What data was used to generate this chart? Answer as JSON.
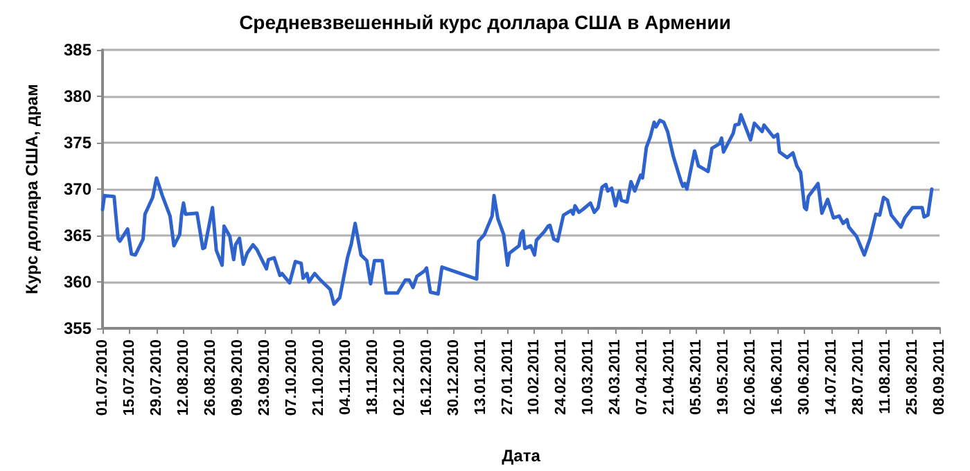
{
  "chart_data": {
    "type": "line",
    "title": "Средневзвешенный курс доллара США в Армении",
    "xlabel": "Дата",
    "ylabel": "Курс доллара США, драм",
    "series": [
      {
        "color": "#2e62cc",
        "x": [
          "2010-07-01",
          "2010-07-02",
          "2010-07-07",
          "2010-07-09",
          "2010-07-10",
          "2010-07-14",
          "2010-07-16",
          "2010-07-18",
          "2010-07-22",
          "2010-07-23",
          "2010-07-27",
          "2010-07-29",
          "2010-08-01",
          "2010-08-05",
          "2010-08-07",
          "2010-08-10",
          "2010-08-11",
          "2010-08-12",
          "2010-08-13",
          "2010-08-19",
          "2010-08-22",
          "2010-08-23",
          "2010-08-27",
          "2010-08-29",
          "2010-09-01",
          "2010-09-02",
          "2010-09-05",
          "2010-09-07",
          "2010-09-08",
          "2010-09-10",
          "2010-09-12",
          "2010-09-14",
          "2010-09-17",
          "2010-09-19",
          "2010-09-24",
          "2010-09-25",
          "2010-09-28",
          "2010-10-01",
          "2010-10-02",
          "2010-10-06",
          "2010-10-09",
          "2010-10-12",
          "2010-10-13",
          "2010-10-15",
          "2010-10-16",
          "2010-10-19",
          "2010-10-22",
          "2010-10-27",
          "2010-10-29",
          "2010-11-01",
          "2010-11-05",
          "2010-11-07",
          "2010-11-09",
          "2010-11-12",
          "2010-11-15",
          "2010-11-17",
          "2010-11-19",
          "2010-11-23",
          "2010-11-25",
          "2010-12-01",
          "2010-12-05",
          "2010-12-07",
          "2010-12-09",
          "2010-12-11",
          "2010-12-15",
          "2010-12-16",
          "2010-12-18",
          "2010-12-22",
          "2010-12-24",
          "2011-01-11",
          "2011-01-12",
          "2011-01-15",
          "2011-01-19",
          "2011-01-20",
          "2011-01-22",
          "2011-01-25",
          "2011-01-27",
          "2011-01-28",
          "2011-02-02",
          "2011-02-03",
          "2011-02-04",
          "2011-02-05",
          "2011-02-08",
          "2011-02-10",
          "2011-02-11",
          "2011-02-15",
          "2011-02-17",
          "2011-02-18",
          "2011-02-20",
          "2011-02-22",
          "2011-02-25",
          "2011-03-01",
          "2011-03-02",
          "2011-03-03",
          "2011-03-05",
          "2011-03-07",
          "2011-03-11",
          "2011-03-13",
          "2011-03-15",
          "2011-03-17",
          "2011-03-19",
          "2011-03-20",
          "2011-03-22",
          "2011-03-24",
          "2011-03-26",
          "2011-03-27",
          "2011-03-30",
          "2011-04-01",
          "2011-04-03",
          "2011-04-06",
          "2011-04-07",
          "2011-04-09",
          "2011-04-11",
          "2011-04-13",
          "2011-04-14",
          "2011-04-16",
          "2011-04-18",
          "2011-04-20",
          "2011-04-23",
          "2011-04-27",
          "2011-04-28",
          "2011-04-29",
          "2011-04-30",
          "2011-05-04",
          "2011-05-06",
          "2011-05-11",
          "2011-05-13",
          "2011-05-17",
          "2011-05-18",
          "2011-05-19",
          "2011-05-24",
          "2011-05-25",
          "2011-05-27",
          "2011-05-28",
          "2011-06-02",
          "2011-06-04",
          "2011-06-08",
          "2011-06-09",
          "2011-06-14",
          "2011-06-16",
          "2011-06-17",
          "2011-06-21",
          "2011-06-24",
          "2011-06-26",
          "2011-06-28",
          "2011-06-30",
          "2011-07-01",
          "2011-07-02",
          "2011-07-07",
          "2011-07-09",
          "2011-07-12",
          "2011-07-15",
          "2011-07-18",
          "2011-07-20",
          "2011-07-22",
          "2011-07-23",
          "2011-07-27",
          "2011-07-31",
          "2011-08-03",
          "2011-08-06",
          "2011-08-08",
          "2011-08-10",
          "2011-08-12",
          "2011-08-14",
          "2011-08-19",
          "2011-08-21",
          "2011-08-25",
          "2011-08-30",
          "2011-08-31",
          "2011-09-02",
          "2011-09-04"
        ],
        "values": [
          367.8,
          369.3,
          369.2,
          364.7,
          364.4,
          365.7,
          363.0,
          362.9,
          364.6,
          367.3,
          369.1,
          371.2,
          369.3,
          367.1,
          363.9,
          365.1,
          367.3,
          368.5,
          367.3,
          367.4,
          363.6,
          363.7,
          368.0,
          363.4,
          361.8,
          366.0,
          364.9,
          362.4,
          364.0,
          364.7,
          361.9,
          363.1,
          364.0,
          363.5,
          361.4,
          362.4,
          362.6,
          360.7,
          360.9,
          359.9,
          362.2,
          362.0,
          360.4,
          360.9,
          360.0,
          360.9,
          360.2,
          359.2,
          357.6,
          358.3,
          362.6,
          364.1,
          366.3,
          362.9,
          362.3,
          359.8,
          362.3,
          362.3,
          358.8,
          358.8,
          360.2,
          360.2,
          359.4,
          360.6,
          361.2,
          361.5,
          358.9,
          358.7,
          361.6,
          360.3,
          364.4,
          365.1,
          367.1,
          369.3,
          366.8,
          365.1,
          361.8,
          363.1,
          363.9,
          365.2,
          365.5,
          363.6,
          363.9,
          362.9,
          364.5,
          365.4,
          366.0,
          366.1,
          364.6,
          364.4,
          367.2,
          367.7,
          367.3,
          368.2,
          367.5,
          367.8,
          368.5,
          367.5,
          368.0,
          370.2,
          370.5,
          369.8,
          370.1,
          368.2,
          369.8,
          368.8,
          368.6,
          370.8,
          369.8,
          371.5,
          371.2,
          374.5,
          375.6,
          377.2,
          376.7,
          377.4,
          377.2,
          376.2,
          373.5,
          370.8,
          370.3,
          370.6,
          370.0,
          374.1,
          372.5,
          371.9,
          374.4,
          374.9,
          375.5,
          374.0,
          376.0,
          376.9,
          377.0,
          378.0,
          375.3,
          377.1,
          376.2,
          376.9,
          375.6,
          375.9,
          374.0,
          373.4,
          373.9,
          372.5,
          371.8,
          368.0,
          367.8,
          369.2,
          370.6,
          367.4,
          368.9,
          366.9,
          367.1,
          366.3,
          366.7,
          365.9,
          364.9,
          362.9,
          364.7,
          367.3,
          367.2,
          369.1,
          368.8,
          367.2,
          365.9,
          366.9,
          368.0,
          368.0,
          367.0,
          367.2,
          370.0
        ]
      }
    ],
    "xlim": [
      "2010-07-01",
      "2011-09-08"
    ],
    "xticks": [
      {
        "value": "2010-07-01",
        "label": "01.07.2010"
      },
      {
        "value": "2010-07-15",
        "label": "15.07.2010"
      },
      {
        "value": "2010-07-29",
        "label": "29.07.2010"
      },
      {
        "value": "2010-08-12",
        "label": "12.08.2010"
      },
      {
        "value": "2010-08-26",
        "label": "26.08.2010"
      },
      {
        "value": "2010-09-09",
        "label": "09.09.2010"
      },
      {
        "value": "2010-09-23",
        "label": "23.09.2010"
      },
      {
        "value": "2010-10-07",
        "label": "07.10.2010"
      },
      {
        "value": "2010-10-21",
        "label": "21.10.2010"
      },
      {
        "value": "2010-11-04",
        "label": "04.11.2010"
      },
      {
        "value": "2010-11-18",
        "label": "18.11.2010"
      },
      {
        "value": "2010-12-02",
        "label": "02.12.2010"
      },
      {
        "value": "2010-12-16",
        "label": "16.12.2010"
      },
      {
        "value": "2010-12-30",
        "label": "30.12.2010"
      },
      {
        "value": "2011-01-13",
        "label": "13.01.2011"
      },
      {
        "value": "2011-01-27",
        "label": "27.01.2011"
      },
      {
        "value": "2011-02-10",
        "label": "10.02.2011"
      },
      {
        "value": "2011-02-24",
        "label": "24.02.2011"
      },
      {
        "value": "2011-03-10",
        "label": "10.03.2011"
      },
      {
        "value": "2011-03-24",
        "label": "24.03.2011"
      },
      {
        "value": "2011-04-07",
        "label": "07.04.2011"
      },
      {
        "value": "2011-04-21",
        "label": "21.04.2011"
      },
      {
        "value": "2011-05-05",
        "label": "05.05.2011"
      },
      {
        "value": "2011-05-19",
        "label": "19.05.2011"
      },
      {
        "value": "2011-06-02",
        "label": "02.06.2011"
      },
      {
        "value": "2011-06-16",
        "label": "16.06.2011"
      },
      {
        "value": "2011-06-30",
        "label": "30.06.2011"
      },
      {
        "value": "2011-07-14",
        "label": "14.07.2011"
      },
      {
        "value": "2011-07-28",
        "label": "28.07.2011"
      },
      {
        "value": "2011-08-11",
        "label": "11.08.2011"
      },
      {
        "value": "2011-08-25",
        "label": "25.08.2011"
      },
      {
        "value": "2011-09-08",
        "label": "08.09.2011"
      }
    ],
    "ylim": [
      355,
      385
    ],
    "yticks": [
      355,
      360,
      365,
      370,
      375,
      380,
      385
    ],
    "grid": "y",
    "marker": "none",
    "line_style": "solid"
  }
}
